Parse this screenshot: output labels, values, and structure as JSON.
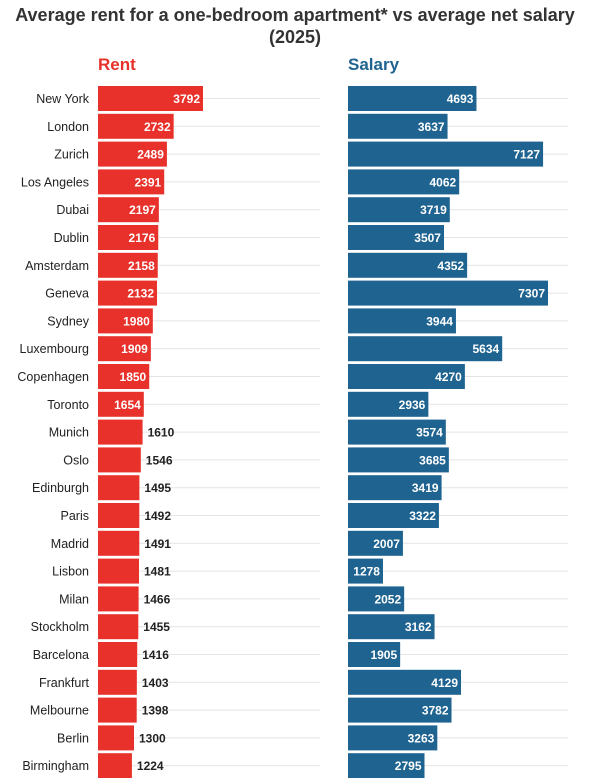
{
  "title": "Average rent for a one-bedroom apartment* vs average net salary (2025)",
  "colors": {
    "rent": "#e8312a",
    "salary": "#1f6391",
    "title": "#333333",
    "grid": "#e4e4e4"
  },
  "chart_data": [
    {
      "type": "bar",
      "orientation": "horizontal",
      "title": "Rent",
      "categories": [
        "New York",
        "London",
        "Zurich",
        "Los Angeles",
        "Dubai",
        "Dublin",
        "Amsterdam",
        "Geneva",
        "Sydney",
        "Luxembourg",
        "Copenhagen",
        "Toronto",
        "Munich",
        "Oslo",
        "Edinburgh",
        "Paris",
        "Madrid",
        "Lisbon",
        "Milan",
        "Stockholm",
        "Barcelona",
        "Frankfurt",
        "Melbourne",
        "Berlin",
        "Birmingham"
      ],
      "values": [
        3792,
        2732,
        2489,
        2391,
        2197,
        2176,
        2158,
        2132,
        1980,
        1909,
        1850,
        1654,
        1610,
        1546,
        1495,
        1492,
        1491,
        1481,
        1466,
        1455,
        1416,
        1403,
        1398,
        1300,
        1224
      ],
      "data_labels": true,
      "grid": true
    },
    {
      "type": "bar",
      "orientation": "horizontal",
      "title": "Salary",
      "categories": [
        "New York",
        "London",
        "Zurich",
        "Los Angeles",
        "Dubai",
        "Dublin",
        "Amsterdam",
        "Geneva",
        "Sydney",
        "Luxembourg",
        "Copenhagen",
        "Toronto",
        "Munich",
        "Oslo",
        "Edinburgh",
        "Paris",
        "Madrid",
        "Lisbon",
        "Milan",
        "Stockholm",
        "Barcelona",
        "Frankfurt",
        "Melbourne",
        "Berlin",
        "Birmingham"
      ],
      "values": [
        4693,
        3637,
        7127,
        4062,
        3719,
        3507,
        4352,
        7307,
        3944,
        5634,
        4270,
        2936,
        3574,
        3685,
        3419,
        3322,
        2007,
        1278,
        2052,
        3162,
        1905,
        4129,
        3782,
        3263,
        2795
      ],
      "data_labels": true,
      "grid": true
    }
  ]
}
